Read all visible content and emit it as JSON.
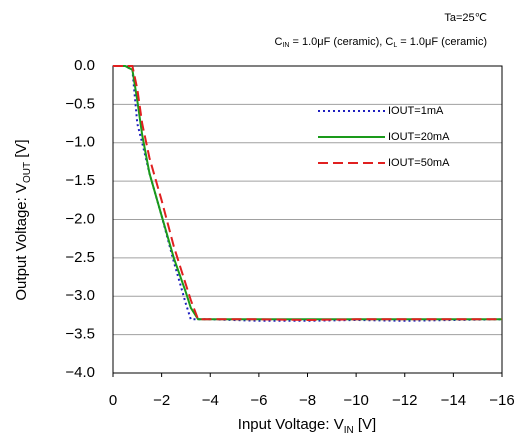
{
  "chart_data": {
    "type": "line",
    "annotations": [
      {
        "parts": [
          "Ta=25℃"
        ]
      },
      {
        "parts": [
          "C",
          "IN",
          " = 1.0μF (ceramic), C",
          "L",
          " = 1.0μF (ceramic)"
        ]
      }
    ],
    "y_label": {
      "parts": [
        "Output Voltage: V",
        "OUT",
        " [V]"
      ]
    },
    "x_label": {
      "parts": [
        "Input Voltage: V",
        "IN",
        " [V]"
      ]
    },
    "x": [
      0,
      -0.5,
      -0.8,
      -1,
      -1.2,
      -1.5,
      -2,
      -2.5,
      -3,
      -3.2,
      -3.5,
      -4,
      -6,
      -8,
      -10,
      -12,
      -14,
      -16
    ],
    "series": [
      {
        "name": "IOUT=1mA",
        "color": "#1f1fbf",
        "dash": "2,3",
        "values": [
          0,
          0,
          -0.05,
          -0.75,
          -1.0,
          -1.4,
          -1.95,
          -2.55,
          -3.1,
          -3.3,
          -3.3,
          -3.3,
          -3.32,
          -3.32,
          -3.31,
          -3.32,
          -3.31,
          -3.3
        ]
      },
      {
        "name": "IOUT=20mA",
        "color": "#1a9a1a",
        "dash": "none",
        "values": [
          0,
          0,
          -0.05,
          -0.45,
          -0.9,
          -1.4,
          -1.95,
          -2.5,
          -2.95,
          -3.15,
          -3.3,
          -3.3,
          -3.3,
          -3.3,
          -3.3,
          -3.3,
          -3.3,
          -3.3
        ]
      },
      {
        "name": "IOUT=50mA",
        "color": "#e02020",
        "dash": "10,5",
        "values": [
          0,
          0,
          0,
          -0.3,
          -0.75,
          -1.2,
          -1.75,
          -2.35,
          -2.85,
          -3.05,
          -3.3,
          -3.3,
          -3.3,
          -3.31,
          -3.3,
          -3.3,
          -3.3,
          -3.3
        ]
      }
    ],
    "xlim": [
      0,
      -16
    ],
    "xticks": [
      0,
      {
        "value": -2,
        "label": "−2"
      },
      {
        "value": -4,
        "label": "−4"
      },
      {
        "value": -6,
        "label": "−6"
      },
      {
        "value": -8,
        "label": "−8"
      },
      {
        "value": -10,
        "label": "−10"
      },
      {
        "value": -12,
        "label": "−12"
      },
      {
        "value": -14,
        "label": "−14"
      },
      {
        "value": -16,
        "label": "−16"
      }
    ],
    "ylim": [
      -4,
      0
    ],
    "yticks": [
      {
        "value": 0,
        "label": "0.0"
      },
      {
        "value": -0.5,
        "label": "−0.5"
      },
      {
        "value": -1,
        "label": "−1.0"
      },
      {
        "value": -1.5,
        "label": "−1.5"
      },
      {
        "value": -2,
        "label": "−2.0"
      },
      {
        "value": -2.5,
        "label": "−2.5"
      },
      {
        "value": -3,
        "label": "−3.0"
      },
      {
        "value": -3.5,
        "label": "−3.5"
      },
      {
        "value": -4,
        "label": "−4.0"
      }
    ],
    "grid": true
  }
}
